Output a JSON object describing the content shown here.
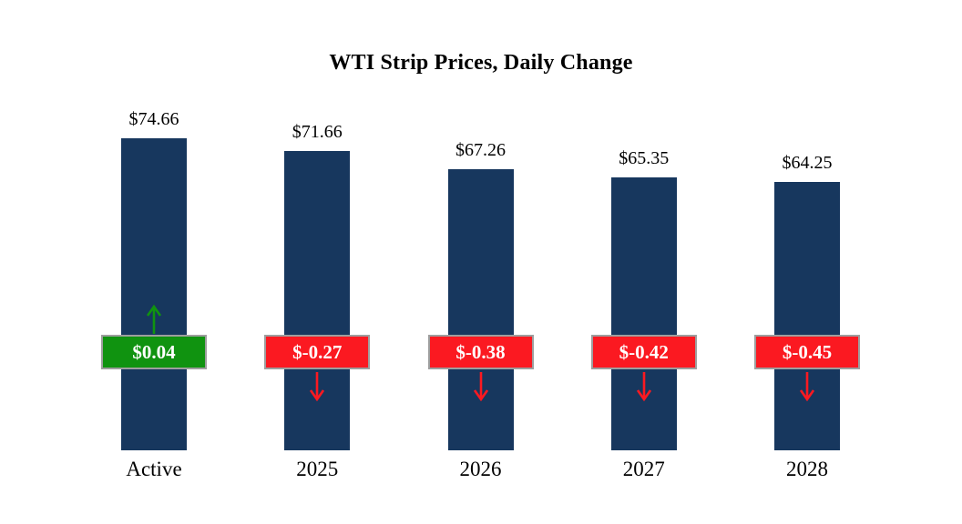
{
  "chart_data": {
    "type": "bar",
    "title": "WTI Strip Prices, Daily Change",
    "categories": [
      "Active",
      "2025",
      "2026",
      "2027",
      "2028"
    ],
    "series": [
      {
        "name": "Strip Price",
        "values": [
          74.66,
          71.66,
          67.26,
          65.35,
          64.25
        ],
        "labels": [
          "$74.66",
          "$71.66",
          "$67.26",
          "$65.35",
          "$64.25"
        ]
      },
      {
        "name": "Daily Change",
        "values": [
          0.04,
          -0.27,
          -0.38,
          -0.42,
          -0.45
        ],
        "labels": [
          "$0.04",
          "$-0.27",
          "$-0.38",
          "$-0.42",
          "$-0.45"
        ]
      }
    ],
    "ylim": [
      0,
      74.66
    ],
    "legend": "none",
    "grid": "off",
    "colors": {
      "bar": "#17375e",
      "positive": "#109310",
      "negative": "#fb1921",
      "badge_border": "#9e9e9e",
      "badge_text": "#ffffff"
    }
  }
}
